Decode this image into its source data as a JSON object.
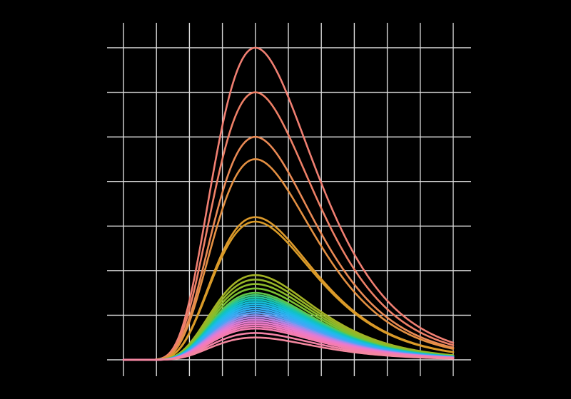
{
  "chart_data": {
    "type": "line",
    "title": "",
    "xlabel": "",
    "ylabel": "",
    "xlim": [
      0,
      10
    ],
    "ylim": [
      0,
      7.2
    ],
    "x_grid": [
      0,
      1,
      2,
      3,
      4,
      5,
      6,
      7,
      8,
      9,
      10
    ],
    "y_grid": [
      0,
      1,
      2,
      3,
      4,
      5,
      6,
      7
    ],
    "grid": true,
    "background": "#000000",
    "grid_color": "#d9d9d9",
    "peak_x": 4,
    "curves": [
      {
        "peak": 7.0,
        "color": "#f07f72"
      },
      {
        "peak": 6.0,
        "color": "#ee8067"
      },
      {
        "peak": 5.0,
        "color": "#ea8a55"
      },
      {
        "peak": 4.5,
        "color": "#e49042"
      },
      {
        "peak": 3.2,
        "color": "#dd9a2c"
      },
      {
        "peak": 3.1,
        "color": "#d99b27"
      },
      {
        "peak": 1.9,
        "color": "#a3b224"
      },
      {
        "peak": 1.8,
        "color": "#98b627"
      },
      {
        "peak": 1.7,
        "color": "#8cbb2a"
      },
      {
        "peak": 1.6,
        "color": "#7cc132"
      },
      {
        "peak": 1.5,
        "color": "#5fc64a"
      },
      {
        "peak": 1.45,
        "color": "#3fc77a"
      },
      {
        "peak": 1.4,
        "color": "#22c5a0"
      },
      {
        "peak": 1.35,
        "color": "#12c2c0"
      },
      {
        "peak": 1.3,
        "color": "#15bfd6"
      },
      {
        "peak": 1.25,
        "color": "#1cbce6"
      },
      {
        "peak": 1.2,
        "color": "#26b6ef"
      },
      {
        "peak": 1.15,
        "color": "#33aff3"
      },
      {
        "peak": 1.1,
        "color": "#40a8f5"
      },
      {
        "peak": 1.05,
        "color": "#5aa0f4"
      },
      {
        "peak": 1.0,
        "color": "#8a93ef"
      },
      {
        "peak": 0.95,
        "color": "#b187e6"
      },
      {
        "peak": 0.9,
        "color": "#d27fdb"
      },
      {
        "peak": 0.85,
        "color": "#e67ccf"
      },
      {
        "peak": 0.8,
        "color": "#ef7bc3"
      },
      {
        "peak": 0.75,
        "color": "#f47bb8"
      },
      {
        "peak": 0.7,
        "color": "#f57dae"
      },
      {
        "peak": 0.6,
        "color": "#f482a6"
      },
      {
        "peak": 0.5,
        "color": "#f3879f"
      }
    ]
  }
}
